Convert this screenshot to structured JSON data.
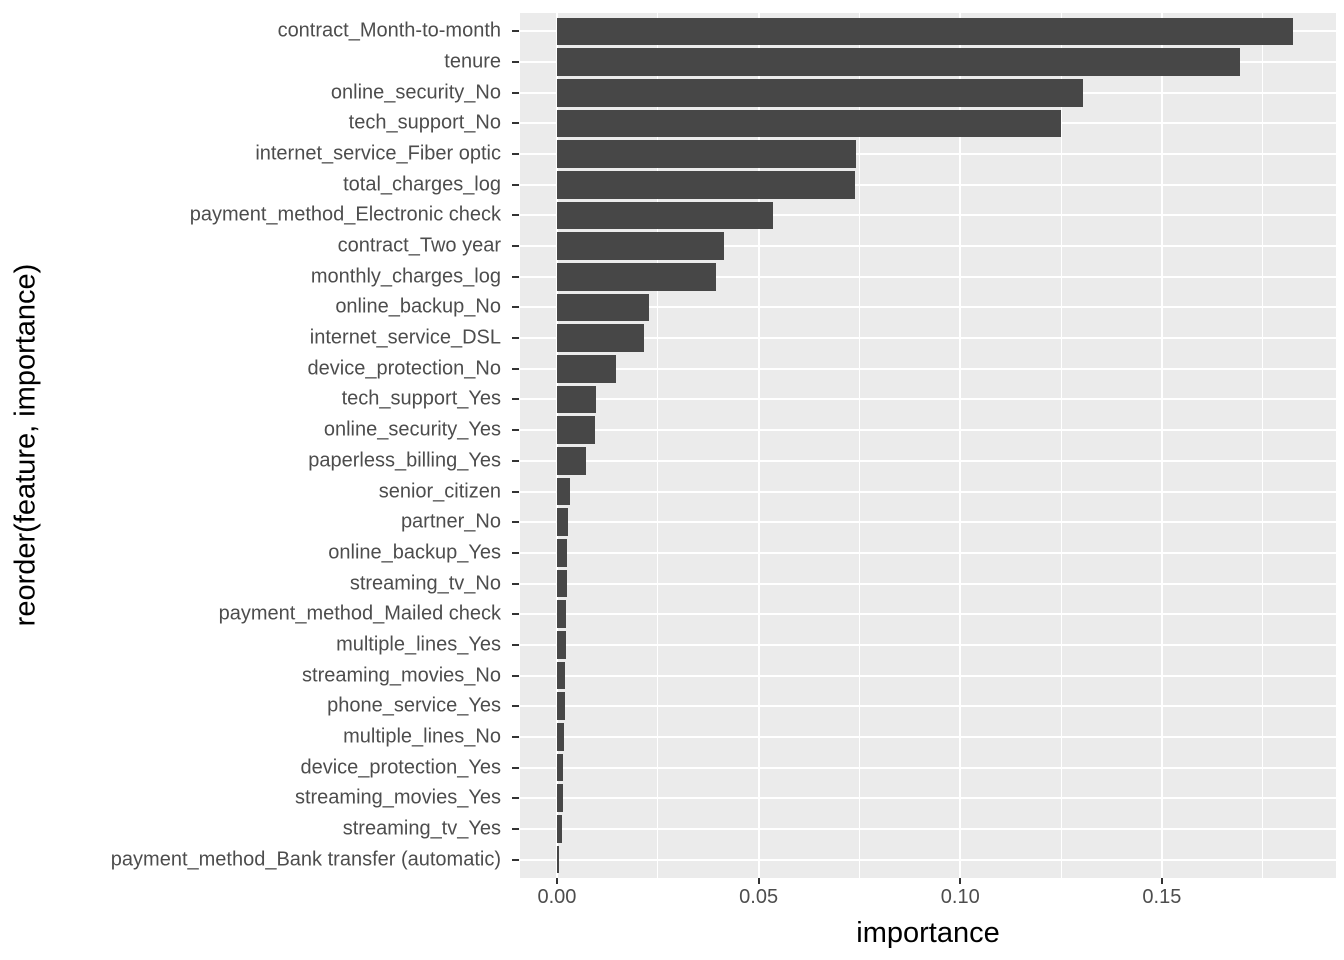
{
  "chart_data": {
    "type": "bar",
    "orientation": "horizontal",
    "xlabel": "importance",
    "ylabel": "reorder(feature, importance)",
    "x_major_ticks": [
      0.0,
      0.05,
      0.1,
      0.15
    ],
    "x_tick_labels": [
      "0.00",
      "0.05",
      "0.10",
      "0.15"
    ],
    "x_minor_ticks": [
      0.025,
      0.075,
      0.125,
      0.175
    ],
    "xlim": [
      -0.00917,
      0.19317
    ],
    "grid": true,
    "legend": false,
    "categories": [
      "contract_Month-to-month",
      "tenure",
      "online_security_No",
      "tech_support_No",
      "internet_service_Fiber optic",
      "total_charges_log",
      "payment_method_Electronic check",
      "contract_Two year",
      "monthly_charges_log",
      "online_backup_No",
      "internet_service_DSL",
      "device_protection_No",
      "tech_support_Yes",
      "online_security_Yes",
      "paperless_billing_Yes",
      "senior_citizen",
      "partner_No",
      "online_backup_Yes",
      "streaming_tv_No",
      "payment_method_Mailed check",
      "multiple_lines_Yes",
      "streaming_movies_No",
      "phone_service_Yes",
      "multiple_lines_No",
      "device_protection_Yes",
      "streaming_movies_Yes",
      "streaming_tv_Yes",
      "payment_method_Bank transfer (automatic)"
    ],
    "values": [
      0.1826,
      0.1694,
      0.1304,
      0.1251,
      0.0741,
      0.0739,
      0.0536,
      0.0415,
      0.0394,
      0.0227,
      0.0215,
      0.0146,
      0.0097,
      0.0095,
      0.0071,
      0.0032,
      0.0027,
      0.0026,
      0.0025,
      0.0023,
      0.0022,
      0.0019,
      0.0019,
      0.0017,
      0.0016,
      0.0016,
      0.0012,
      0.0004
    ],
    "colors": {
      "bar_fill": "#474747",
      "panel_background": "#EBEBEB",
      "gridline": "#FFFFFF",
      "tick_label": "#4D4D4D",
      "axis_title": "#000000",
      "tick_mark": "#333333"
    }
  }
}
